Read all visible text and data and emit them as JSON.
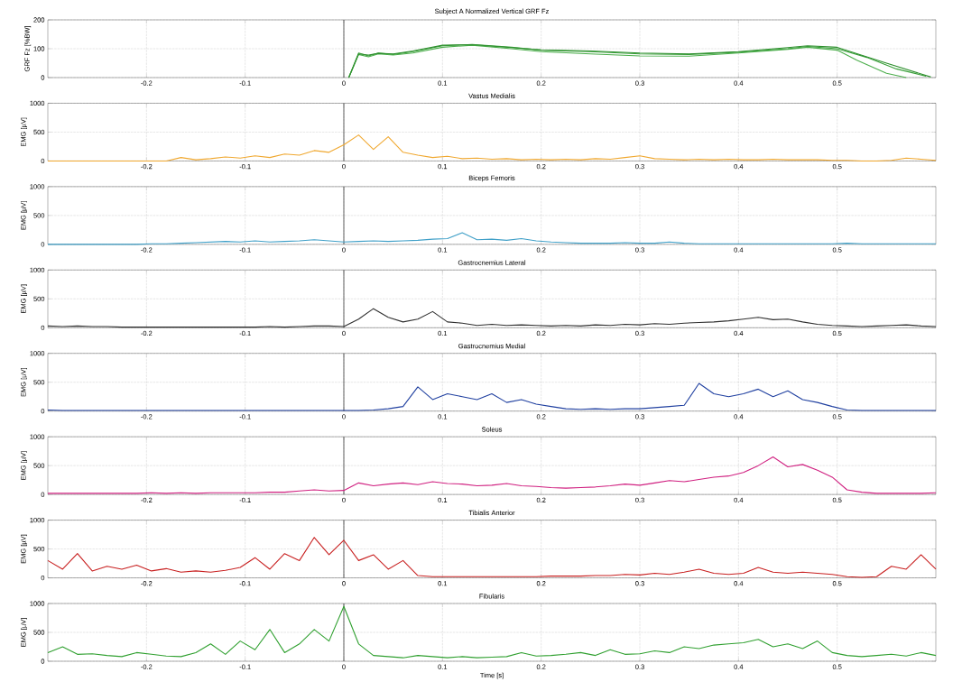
{
  "chart_data": [
    {
      "type": "line",
      "title": "Subject A  Normalized Vertical GRF Fz",
      "ylabel": "GRF Fz [%BW]",
      "xlim": [
        -0.3,
        0.6
      ],
      "ylim": [
        0,
        200
      ],
      "xticks": [
        -0.2,
        -0.1,
        0,
        0.1,
        0.2,
        0.3,
        0.4,
        0.5
      ],
      "yticks": [
        0,
        100,
        200
      ],
      "grid": true,
      "marker": "none",
      "line_style": "solid",
      "ref_lines": [
        {
          "axis": "x",
          "value": 0
        }
      ],
      "series": [
        {
          "color": "#3aa03a",
          "x": [
            0.005,
            0.015,
            0.025,
            0.035,
            0.05,
            0.07,
            0.1,
            0.13,
            0.17,
            0.2,
            0.25,
            0.3,
            0.35,
            0.4,
            0.45,
            0.47,
            0.5,
            0.53,
            0.56,
            0.59
          ],
          "values": [
            0,
            85,
            75,
            85,
            80,
            90,
            110,
            115,
            105,
            95,
            90,
            82,
            80,
            88,
            100,
            108,
            100,
            70,
            30,
            5
          ]
        },
        {
          "color": "#4cae4c",
          "x": [
            0.005,
            0.015,
            0.025,
            0.035,
            0.05,
            0.07,
            0.1,
            0.13,
            0.17,
            0.2,
            0.25,
            0.3,
            0.35,
            0.4,
            0.45,
            0.47,
            0.5,
            0.52,
            0.55,
            0.57
          ],
          "values": [
            0,
            80,
            72,
            82,
            78,
            85,
            105,
            112,
            100,
            90,
            82,
            75,
            74,
            85,
            98,
            105,
            95,
            60,
            15,
            0
          ]
        },
        {
          "color": "#2e8f2e",
          "x": [
            0.005,
            0.015,
            0.025,
            0.035,
            0.05,
            0.07,
            0.1,
            0.13,
            0.17,
            0.2,
            0.25,
            0.3,
            0.35,
            0.4,
            0.45,
            0.47,
            0.5,
            0.55,
            0.595
          ],
          "values": [
            0,
            82,
            78,
            84,
            82,
            92,
            112,
            114,
            104,
            96,
            92,
            85,
            82,
            90,
            104,
            110,
            105,
            50,
            2
          ]
        }
      ]
    },
    {
      "type": "line",
      "title": "Vastus Medialis",
      "ylabel": "EMG [µV]",
      "xlim": [
        -0.3,
        0.6
      ],
      "ylim": [
        0,
        1000
      ],
      "xticks": [
        -0.2,
        -0.1,
        0,
        0.1,
        0.2,
        0.3,
        0.4,
        0.5
      ],
      "yticks": [
        0,
        500,
        1000
      ],
      "grid": true,
      "marker": "none",
      "line_style": "solid",
      "ref_lines": [
        {
          "axis": "x",
          "value": 0
        }
      ],
      "x": [
        -0.3,
        -0.285,
        -0.27,
        -0.255,
        -0.24,
        -0.225,
        -0.21,
        -0.195,
        -0.18,
        -0.165,
        -0.15,
        -0.135,
        -0.12,
        -0.105,
        -0.09,
        -0.075,
        -0.06,
        -0.045,
        -0.03,
        -0.015,
        0,
        0.015,
        0.03,
        0.045,
        0.06,
        0.075,
        0.09,
        0.105,
        0.12,
        0.135,
        0.15,
        0.165,
        0.18,
        0.195,
        0.21,
        0.225,
        0.24,
        0.255,
        0.27,
        0.285,
        0.3,
        0.315,
        0.33,
        0.345,
        0.36,
        0.375,
        0.39,
        0.405,
        0.42,
        0.435,
        0.45,
        0.465,
        0.48,
        0.495,
        0.51,
        0.525,
        0.54,
        0.555,
        0.57,
        0.585,
        0.6
      ],
      "series": [
        {
          "color": "#f0a830",
          "values": [
            0,
            0,
            0,
            0,
            0,
            0,
            0,
            0,
            0,
            60,
            20,
            40,
            70,
            50,
            90,
            60,
            120,
            100,
            180,
            150,
            280,
            450,
            200,
            420,
            150,
            100,
            60,
            80,
            40,
            50,
            30,
            40,
            20,
            30,
            20,
            30,
            20,
            40,
            30,
            60,
            90,
            40,
            30,
            20,
            30,
            20,
            30,
            20,
            20,
            30,
            20,
            20,
            20,
            10,
            10,
            0,
            0,
            10,
            50,
            30,
            10
          ]
        }
      ]
    },
    {
      "type": "line",
      "title": "Biceps Femoris",
      "ylabel": "EMG [µV]",
      "xlim": [
        -0.3,
        0.6
      ],
      "ylim": [
        0,
        1000
      ],
      "xticks": [
        -0.2,
        -0.1,
        0,
        0.1,
        0.2,
        0.3,
        0.4,
        0.5
      ],
      "yticks": [
        0,
        500,
        1000
      ],
      "grid": true,
      "marker": "none",
      "line_style": "solid",
      "ref_lines": [
        {
          "axis": "x",
          "value": 0
        }
      ],
      "x": [
        -0.3,
        -0.285,
        -0.27,
        -0.255,
        -0.24,
        -0.225,
        -0.21,
        -0.195,
        -0.18,
        -0.165,
        -0.15,
        -0.135,
        -0.12,
        -0.105,
        -0.09,
        -0.075,
        -0.06,
        -0.045,
        -0.03,
        -0.015,
        0,
        0.015,
        0.03,
        0.045,
        0.06,
        0.075,
        0.09,
        0.105,
        0.12,
        0.135,
        0.15,
        0.165,
        0.18,
        0.195,
        0.21,
        0.225,
        0.24,
        0.255,
        0.27,
        0.285,
        0.3,
        0.315,
        0.33,
        0.345,
        0.36,
        0.375,
        0.39,
        0.405,
        0.42,
        0.435,
        0.45,
        0.465,
        0.48,
        0.495,
        0.51,
        0.525,
        0.54,
        0.555,
        0.57,
        0.585,
        0.6
      ],
      "series": [
        {
          "color": "#40a0c8",
          "values": [
            0,
            0,
            0,
            0,
            0,
            0,
            0,
            10,
            10,
            20,
            30,
            40,
            50,
            40,
            60,
            40,
            50,
            60,
            80,
            60,
            40,
            50,
            60,
            50,
            60,
            70,
            90,
            100,
            200,
            80,
            90,
            70,
            100,
            60,
            40,
            30,
            20,
            20,
            20,
            30,
            20,
            20,
            40,
            20,
            10,
            10,
            10,
            10,
            10,
            10,
            10,
            10,
            10,
            10,
            20,
            10,
            10,
            10,
            10,
            10,
            10
          ]
        }
      ]
    },
    {
      "type": "line",
      "title": "Gastrocnemius Lateral",
      "ylabel": "EMG [µV]",
      "xlim": [
        -0.3,
        0.6
      ],
      "ylim": [
        0,
        1000
      ],
      "xticks": [
        -0.2,
        -0.1,
        0,
        0.1,
        0.2,
        0.3,
        0.4,
        0.5
      ],
      "yticks": [
        0,
        500,
        1000
      ],
      "grid": true,
      "marker": "none",
      "line_style": "solid",
      "ref_lines": [
        {
          "axis": "x",
          "value": 0
        }
      ],
      "x": [
        -0.3,
        -0.285,
        -0.27,
        -0.255,
        -0.24,
        -0.225,
        -0.21,
        -0.195,
        -0.18,
        -0.165,
        -0.15,
        -0.135,
        -0.12,
        -0.105,
        -0.09,
        -0.075,
        -0.06,
        -0.045,
        -0.03,
        -0.015,
        0,
        0.015,
        0.03,
        0.045,
        0.06,
        0.075,
        0.09,
        0.105,
        0.12,
        0.135,
        0.15,
        0.165,
        0.18,
        0.195,
        0.21,
        0.225,
        0.24,
        0.255,
        0.27,
        0.285,
        0.3,
        0.315,
        0.33,
        0.345,
        0.36,
        0.375,
        0.39,
        0.405,
        0.42,
        0.435,
        0.45,
        0.465,
        0.48,
        0.495,
        0.51,
        0.525,
        0.54,
        0.555,
        0.57,
        0.585,
        0.6
      ],
      "series": [
        {
          "color": "#303030",
          "values": [
            30,
            20,
            30,
            20,
            20,
            10,
            10,
            10,
            10,
            10,
            10,
            10,
            10,
            10,
            10,
            20,
            10,
            20,
            30,
            30,
            20,
            150,
            330,
            180,
            100,
            150,
            280,
            100,
            80,
            40,
            60,
            40,
            50,
            40,
            30,
            40,
            30,
            50,
            40,
            60,
            50,
            70,
            60,
            80,
            90,
            100,
            120,
            150,
            180,
            140,
            150,
            100,
            60,
            40,
            30,
            20,
            30,
            40,
            50,
            30,
            20
          ]
        }
      ]
    },
    {
      "type": "line",
      "title": "Gastrocnemius Medial",
      "ylabel": "EMG [µV]",
      "xlim": [
        -0.3,
        0.6
      ],
      "ylim": [
        0,
        1000
      ],
      "xticks": [
        -0.2,
        -0.1,
        0,
        0.1,
        0.2,
        0.3,
        0.4,
        0.5
      ],
      "yticks": [
        0,
        500,
        1000
      ],
      "grid": true,
      "marker": "none",
      "line_style": "solid",
      "ref_lines": [
        {
          "axis": "x",
          "value": 0
        }
      ],
      "x": [
        -0.3,
        -0.285,
        -0.27,
        -0.255,
        -0.24,
        -0.225,
        -0.21,
        -0.195,
        -0.18,
        -0.165,
        -0.15,
        -0.135,
        -0.12,
        -0.105,
        -0.09,
        -0.075,
        -0.06,
        -0.045,
        -0.03,
        -0.015,
        0,
        0.015,
        0.03,
        0.045,
        0.06,
        0.075,
        0.09,
        0.105,
        0.12,
        0.135,
        0.15,
        0.165,
        0.18,
        0.195,
        0.21,
        0.225,
        0.24,
        0.255,
        0.27,
        0.285,
        0.3,
        0.315,
        0.33,
        0.345,
        0.36,
        0.375,
        0.39,
        0.405,
        0.42,
        0.435,
        0.45,
        0.465,
        0.48,
        0.495,
        0.51,
        0.525,
        0.54,
        0.555,
        0.57,
        0.585,
        0.6
      ],
      "series": [
        {
          "color": "#2040a0",
          "values": [
            20,
            10,
            10,
            10,
            10,
            10,
            10,
            10,
            10,
            10,
            10,
            10,
            10,
            10,
            10,
            10,
            10,
            10,
            10,
            10,
            10,
            10,
            20,
            40,
            80,
            420,
            200,
            300,
            250,
            200,
            300,
            150,
            200,
            120,
            80,
            40,
            30,
            40,
            30,
            40,
            40,
            60,
            80,
            100,
            480,
            300,
            250,
            300,
            380,
            250,
            350,
            200,
            150,
            80,
            20,
            10,
            10,
            10,
            10,
            10,
            10
          ]
        }
      ]
    },
    {
      "type": "line",
      "title": "Soleus",
      "ylabel": "EMG [µV]",
      "xlim": [
        -0.3,
        0.6
      ],
      "ylim": [
        0,
        1000
      ],
      "xticks": [
        -0.2,
        -0.1,
        0,
        0.1,
        0.2,
        0.3,
        0.4,
        0.5
      ],
      "yticks": [
        0,
        500,
        1000
      ],
      "grid": true,
      "marker": "none",
      "line_style": "solid",
      "ref_lines": [
        {
          "axis": "x",
          "value": 0
        }
      ],
      "x": [
        -0.3,
        -0.285,
        -0.27,
        -0.255,
        -0.24,
        -0.225,
        -0.21,
        -0.195,
        -0.18,
        -0.165,
        -0.15,
        -0.135,
        -0.12,
        -0.105,
        -0.09,
        -0.075,
        -0.06,
        -0.045,
        -0.03,
        -0.015,
        0,
        0.015,
        0.03,
        0.045,
        0.06,
        0.075,
        0.09,
        0.105,
        0.12,
        0.135,
        0.15,
        0.165,
        0.18,
        0.195,
        0.21,
        0.225,
        0.24,
        0.255,
        0.27,
        0.285,
        0.3,
        0.315,
        0.33,
        0.345,
        0.36,
        0.375,
        0.39,
        0.405,
        0.42,
        0.435,
        0.45,
        0.465,
        0.48,
        0.495,
        0.51,
        0.525,
        0.54,
        0.555,
        0.57,
        0.585,
        0.6
      ],
      "series": [
        {
          "color": "#d02080",
          "values": [
            20,
            20,
            20,
            20,
            20,
            20,
            20,
            30,
            20,
            30,
            20,
            30,
            30,
            30,
            30,
            40,
            40,
            60,
            80,
            60,
            70,
            200,
            150,
            180,
            200,
            170,
            220,
            190,
            180,
            150,
            160,
            190,
            150,
            140,
            120,
            110,
            120,
            130,
            150,
            180,
            160,
            200,
            240,
            220,
            260,
            300,
            320,
            380,
            500,
            650,
            480,
            520,
            420,
            300,
            80,
            40,
            20,
            20,
            20,
            20,
            30
          ]
        }
      ]
    },
    {
      "type": "line",
      "title": "Tibialis Anterior",
      "ylabel": "EMG [µV]",
      "xlim": [
        -0.3,
        0.6
      ],
      "ylim": [
        0,
        1000
      ],
      "xticks": [
        -0.2,
        -0.1,
        0,
        0.1,
        0.2,
        0.3,
        0.4,
        0.5
      ],
      "yticks": [
        0,
        500,
        1000
      ],
      "grid": true,
      "marker": "none",
      "line_style": "solid",
      "ref_lines": [
        {
          "axis": "x",
          "value": 0
        }
      ],
      "x": [
        -0.3,
        -0.285,
        -0.27,
        -0.255,
        -0.24,
        -0.225,
        -0.21,
        -0.195,
        -0.18,
        -0.165,
        -0.15,
        -0.135,
        -0.12,
        -0.105,
        -0.09,
        -0.075,
        -0.06,
        -0.045,
        -0.03,
        -0.015,
        0,
        0.015,
        0.03,
        0.045,
        0.06,
        0.075,
        0.09,
        0.105,
        0.12,
        0.135,
        0.15,
        0.165,
        0.18,
        0.195,
        0.21,
        0.225,
        0.24,
        0.255,
        0.27,
        0.285,
        0.3,
        0.315,
        0.33,
        0.345,
        0.36,
        0.375,
        0.39,
        0.405,
        0.42,
        0.435,
        0.45,
        0.465,
        0.48,
        0.495,
        0.51,
        0.525,
        0.54,
        0.555,
        0.57,
        0.585,
        0.6
      ],
      "series": [
        {
          "color": "#c82020",
          "values": [
            300,
            150,
            420,
            120,
            200,
            150,
            220,
            120,
            160,
            100,
            120,
            100,
            130,
            180,
            350,
            150,
            420,
            300,
            700,
            400,
            650,
            300,
            400,
            150,
            300,
            40,
            20,
            20,
            20,
            20,
            20,
            20,
            20,
            20,
            30,
            30,
            30,
            40,
            40,
            60,
            50,
            80,
            60,
            100,
            150,
            80,
            60,
            80,
            180,
            100,
            80,
            100,
            80,
            60,
            20,
            10,
            20,
            200,
            150,
            400,
            150
          ]
        }
      ]
    },
    {
      "type": "line",
      "title": "Fibularis",
      "ylabel": "EMG [µV]",
      "xlabel": "Time [s]",
      "xlim": [
        -0.3,
        0.6
      ],
      "ylim": [
        0,
        1000
      ],
      "xticks": [
        -0.2,
        -0.1,
        0,
        0.1,
        0.2,
        0.3,
        0.4,
        0.5
      ],
      "yticks": [
        0,
        500,
        1000
      ],
      "grid": true,
      "marker": "none",
      "line_style": "solid",
      "ref_lines": [
        {
          "axis": "x",
          "value": 0
        }
      ],
      "x": [
        -0.3,
        -0.285,
        -0.27,
        -0.255,
        -0.24,
        -0.225,
        -0.21,
        -0.195,
        -0.18,
        -0.165,
        -0.15,
        -0.135,
        -0.12,
        -0.105,
        -0.09,
        -0.075,
        -0.06,
        -0.045,
        -0.03,
        -0.015,
        0,
        0.015,
        0.03,
        0.045,
        0.06,
        0.075,
        0.09,
        0.105,
        0.12,
        0.135,
        0.15,
        0.165,
        0.18,
        0.195,
        0.21,
        0.225,
        0.24,
        0.255,
        0.27,
        0.285,
        0.3,
        0.315,
        0.33,
        0.345,
        0.36,
        0.375,
        0.39,
        0.405,
        0.42,
        0.435,
        0.45,
        0.465,
        0.48,
        0.495,
        0.51,
        0.525,
        0.54,
        0.555,
        0.57,
        0.585,
        0.6
      ],
      "series": [
        {
          "color": "#30a030",
          "values": [
            150,
            250,
            120,
            130,
            100,
            80,
            150,
            120,
            90,
            80,
            150,
            300,
            120,
            350,
            200,
            550,
            150,
            300,
            550,
            350,
            950,
            300,
            100,
            80,
            60,
            100,
            80,
            60,
            80,
            60,
            70,
            80,
            150,
            90,
            100,
            120,
            150,
            100,
            200,
            120,
            130,
            180,
            150,
            250,
            220,
            280,
            300,
            320,
            380,
            250,
            300,
            220,
            350,
            150,
            100,
            80,
            100,
            120,
            90,
            150,
            100
          ]
        }
      ]
    }
  ]
}
